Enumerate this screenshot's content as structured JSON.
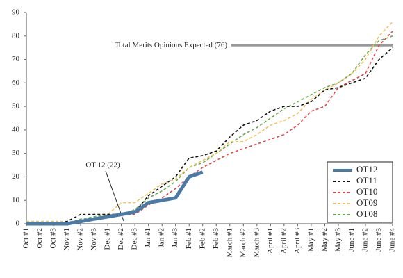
{
  "chart_data": {
    "type": "line",
    "categories": [
      "Oct #1",
      "Oct #2",
      "Oct #3",
      "Nov #1",
      "Nov #2",
      "Nov #3",
      "Dec #1",
      "Dec #2",
      "Dec #3",
      "Jan #1",
      "Jan #2",
      "Jan #3",
      "Feb #1",
      "Feb #2",
      "Feb #3",
      "March #1",
      "March #2",
      "March #3",
      "April #1",
      "April #2",
      "April #3",
      "May #1",
      "May #2",
      "May #3",
      "June #1",
      "June #2",
      "June #3",
      "June #4"
    ],
    "series": [
      {
        "name": "OT12",
        "color": "#4a7aa7",
        "style": "solid",
        "values": [
          0,
          0,
          0,
          0,
          1,
          2,
          3,
          4,
          5,
          9,
          10,
          11,
          20,
          22,
          null,
          null,
          null,
          null,
          null,
          null,
          null,
          null,
          null,
          null,
          null,
          null,
          null,
          null
        ]
      },
      {
        "name": "OT11",
        "color": "#111111",
        "style": "dashed",
        "values": [
          0,
          0,
          0,
          1,
          4,
          4,
          4,
          4,
          5,
          12,
          16,
          20,
          28,
          29,
          31,
          37,
          42,
          44,
          48,
          50,
          50,
          52,
          57,
          58,
          60,
          62,
          70,
          75
        ]
      },
      {
        "name": "OT10",
        "color": "#d9484a",
        "style": "dashed",
        "values": [
          0,
          0,
          0,
          0,
          1,
          2,
          3,
          4,
          4,
          8,
          11,
          15,
          20,
          24,
          27,
          30,
          32,
          34,
          36,
          38,
          42,
          48,
          50,
          58,
          61,
          64,
          76,
          82
        ]
      },
      {
        "name": "OT09",
        "color": "#efbf5c",
        "style": "dashed",
        "values": [
          1,
          1,
          1,
          1,
          1,
          2,
          4,
          9,
          9,
          13,
          17,
          19,
          24,
          27,
          30,
          35,
          35,
          38,
          42,
          44,
          47,
          53,
          57,
          60,
          64,
          70,
          80,
          86
        ]
      },
      {
        "name": "OT08",
        "color": "#6aa84f",
        "style": "dashed",
        "values": [
          0,
          0,
          0,
          0,
          2,
          3,
          4,
          4,
          6,
          11,
          14,
          18,
          24,
          26,
          30,
          34,
          38,
          41,
          45,
          49,
          52,
          55,
          58,
          60,
          64,
          72,
          78,
          80
        ]
      }
    ],
    "ylim": [
      0,
      90
    ],
    "yticks": [
      0,
      10,
      20,
      30,
      40,
      50,
      60,
      70,
      80,
      90
    ],
    "grid": false,
    "legend": "lower right",
    "reference_line": {
      "value": 76,
      "label": "Total Merits Opinions Expected (76)",
      "color": "#999999"
    },
    "annotation": "OT 12 (22)"
  }
}
